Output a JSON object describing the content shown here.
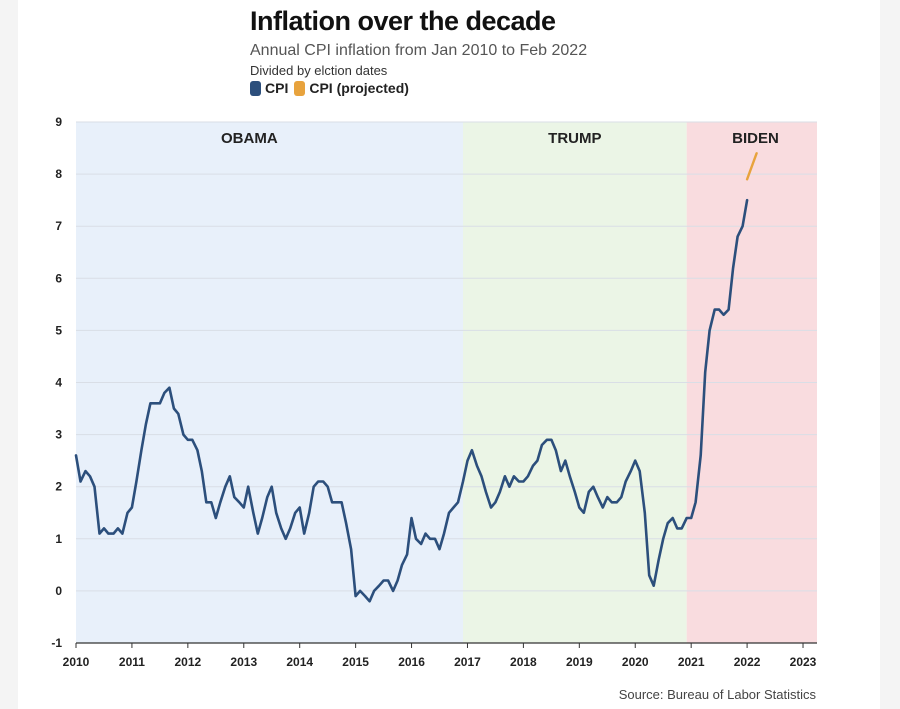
{
  "header": {
    "title": "Inflation over the decade",
    "subtitle": "Annual CPI inflation from Jan 2010 to Feb 2022",
    "note": "Divided by elction dates"
  },
  "source": "Source: Bureau of Labor Statistics",
  "colors": {
    "cpi": "#2c4f7c",
    "projected": "#e8a33d",
    "obama_band": "#e8f0fa",
    "trump_band": "#ebf5e6",
    "biden_band": "#f9dcdf",
    "grid": "#d9dee6"
  },
  "chart_data": {
    "type": "line",
    "title": "Inflation over the decade",
    "subtitle": "Annual CPI inflation from Jan 2010 to Feb 2022",
    "xlabel": "",
    "ylabel": "",
    "xlim": [
      2010,
      2023.25
    ],
    "ylim": [
      -1,
      9
    ],
    "y_ticks": [
      "-1",
      "0",
      "1",
      "2",
      "3",
      "4",
      "5",
      "6",
      "7",
      "8",
      "9"
    ],
    "x_ticks": [
      "2010",
      "2011",
      "2012",
      "2013",
      "2014",
      "2015",
      "2016",
      "2017",
      "2018",
      "2019",
      "2020",
      "2021",
      "2022",
      "2023"
    ],
    "grid": "horizontal",
    "legend": {
      "placement": "top-left",
      "entries": [
        "CPI",
        "CPI (projected)"
      ]
    },
    "eras": [
      {
        "label": "OBAMA",
        "start": 2010,
        "end": 2016.92
      },
      {
        "label": "TRUMP",
        "start": 2016.92,
        "end": 2020.92
      },
      {
        "label": "BIDEN",
        "start": 2020.92,
        "end": 2023.25
      }
    ],
    "series": [
      {
        "name": "CPI",
        "x": [
          2010.0,
          2010.08,
          2010.17,
          2010.25,
          2010.33,
          2010.42,
          2010.5,
          2010.58,
          2010.67,
          2010.75,
          2010.83,
          2010.92,
          2011.0,
          2011.08,
          2011.17,
          2011.25,
          2011.33,
          2011.42,
          2011.5,
          2011.58,
          2011.67,
          2011.75,
          2011.83,
          2011.92,
          2012.0,
          2012.08,
          2012.17,
          2012.25,
          2012.33,
          2012.42,
          2012.5,
          2012.58,
          2012.67,
          2012.75,
          2012.83,
          2012.92,
          2013.0,
          2013.08,
          2013.17,
          2013.25,
          2013.33,
          2013.42,
          2013.5,
          2013.58,
          2013.67,
          2013.75,
          2013.83,
          2013.92,
          2014.0,
          2014.08,
          2014.17,
          2014.25,
          2014.33,
          2014.42,
          2014.5,
          2014.58,
          2014.67,
          2014.75,
          2014.83,
          2014.92,
          2015.0,
          2015.08,
          2015.17,
          2015.25,
          2015.33,
          2015.42,
          2015.5,
          2015.58,
          2015.67,
          2015.75,
          2015.83,
          2015.92,
          2016.0,
          2016.08,
          2016.17,
          2016.25,
          2016.33,
          2016.42,
          2016.5,
          2016.58,
          2016.67,
          2016.75,
          2016.83,
          2016.92,
          2017.0,
          2017.08,
          2017.17,
          2017.25,
          2017.33,
          2017.42,
          2017.5,
          2017.58,
          2017.67,
          2017.75,
          2017.83,
          2017.92,
          2018.0,
          2018.08,
          2018.17,
          2018.25,
          2018.33,
          2018.42,
          2018.5,
          2018.58,
          2018.67,
          2018.75,
          2018.83,
          2018.92,
          2019.0,
          2019.08,
          2019.17,
          2019.25,
          2019.33,
          2019.42,
          2019.5,
          2019.58,
          2019.67,
          2019.75,
          2019.83,
          2019.92,
          2020.0,
          2020.08,
          2020.17,
          2020.25,
          2020.33,
          2020.42,
          2020.5,
          2020.58,
          2020.67,
          2020.75,
          2020.83,
          2020.92,
          2021.0,
          2021.08,
          2021.17,
          2021.25,
          2021.33,
          2021.42,
          2021.5,
          2021.58,
          2021.67,
          2021.75,
          2021.83,
          2021.92,
          2022.0
        ],
        "values": [
          2.6,
          2.1,
          2.3,
          2.2,
          2.0,
          1.1,
          1.2,
          1.1,
          1.1,
          1.2,
          1.1,
          1.5,
          1.6,
          2.1,
          2.7,
          3.2,
          3.6,
          3.6,
          3.6,
          3.8,
          3.9,
          3.5,
          3.4,
          3.0,
          2.9,
          2.9,
          2.7,
          2.3,
          1.7,
          1.7,
          1.4,
          1.7,
          2.0,
          2.2,
          1.8,
          1.7,
          1.6,
          2.0,
          1.5,
          1.1,
          1.4,
          1.8,
          2.0,
          1.5,
          1.2,
          1.0,
          1.2,
          1.5,
          1.6,
          1.1,
          1.5,
          2.0,
          2.1,
          2.1,
          2.0,
          1.7,
          1.7,
          1.7,
          1.3,
          0.8,
          -0.1,
          0.0,
          -0.1,
          -0.2,
          0.0,
          0.1,
          0.2,
          0.2,
          0.0,
          0.2,
          0.5,
          0.7,
          1.4,
          1.0,
          0.9,
          1.1,
          1.0,
          1.0,
          0.8,
          1.1,
          1.5,
          1.6,
          1.7,
          2.1,
          2.5,
          2.7,
          2.4,
          2.2,
          1.9,
          1.6,
          1.7,
          1.9,
          2.2,
          2.0,
          2.2,
          2.1,
          2.1,
          2.2,
          2.4,
          2.5,
          2.8,
          2.9,
          2.9,
          2.7,
          2.3,
          2.5,
          2.2,
          1.9,
          1.6,
          1.5,
          1.9,
          2.0,
          1.8,
          1.6,
          1.8,
          1.7,
          1.7,
          1.8,
          2.1,
          2.3,
          2.5,
          2.3,
          1.5,
          0.3,
          0.1,
          0.6,
          1.0,
          1.3,
          1.4,
          1.2,
          1.2,
          1.4,
          1.4,
          1.7,
          2.6,
          4.2,
          5.0,
          5.4,
          5.4,
          5.3,
          5.4,
          6.2,
          6.8,
          7.0,
          7.5
        ]
      },
      {
        "name": "CPI (projected)",
        "x": [
          2022.0,
          2022.17
        ],
        "values": [
          7.9,
          8.4
        ]
      }
    ]
  }
}
